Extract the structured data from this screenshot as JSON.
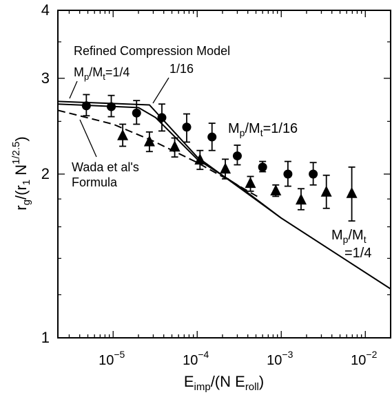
{
  "chart_data": {
    "type": "scatter",
    "x_scale": "log",
    "y_scale": "log",
    "xlim": [
      2.2e-06,
      0.02
    ],
    "ylim": [
      1,
      4
    ],
    "xlabel": {
      "base": "E",
      "sub": "imp",
      "mid": "/(N E",
      "sub2": "roll",
      "end": ")"
    },
    "ylabel": {
      "base": "r",
      "sub": "g",
      "mid": "/(r",
      "sub2": "1",
      "mid2": " N",
      "sup": "1/2.5",
      "end": ")"
    },
    "x_ticks": [
      {
        "value": 1e-05,
        "base": "10",
        "exp": "−5"
      },
      {
        "value": 0.0001,
        "base": "10",
        "exp": "−4"
      },
      {
        "value": 0.001,
        "base": "10",
        "exp": "−3"
      },
      {
        "value": 0.01,
        "base": "10",
        "exp": "−2"
      }
    ],
    "y_ticks": [
      {
        "value": 1,
        "label": "1"
      },
      {
        "value": 2,
        "label": "2"
      },
      {
        "value": 3,
        "label": "3"
      },
      {
        "value": 4,
        "label": "4"
      }
    ],
    "series": [
      {
        "marker": "circle",
        "points": [
          {
            "x": 4.8e-06,
            "y": 2.67,
            "lo": 2.56,
            "hi": 2.8
          },
          {
            "x": 9.5e-06,
            "y": 2.66,
            "lo": 2.55,
            "hi": 2.79
          },
          {
            "x": 1.9e-05,
            "y": 2.59,
            "lo": 2.47,
            "hi": 2.73
          },
          {
            "x": 3.8e-05,
            "y": 2.54,
            "lo": 2.4,
            "hi": 2.69
          },
          {
            "x": 7.5e-05,
            "y": 2.44,
            "lo": 2.29,
            "hi": 2.58
          },
          {
            "x": 0.00015,
            "y": 2.34,
            "lo": 2.21,
            "hi": 2.48
          },
          {
            "x": 0.0003,
            "y": 2.16,
            "lo": 2.08,
            "hi": 2.26
          },
          {
            "x": 0.0006,
            "y": 2.06,
            "lo": 2.02,
            "hi": 2.11
          },
          {
            "x": 0.0012,
            "y": 2.0,
            "lo": 1.9,
            "hi": 2.11
          },
          {
            "x": 0.0024,
            "y": 2.0,
            "lo": 1.91,
            "hi": 2.1
          }
        ]
      },
      {
        "marker": "triangle",
        "points": [
          {
            "x": 1.3e-05,
            "y": 2.35,
            "lo": 2.25,
            "hi": 2.47
          },
          {
            "x": 2.7e-05,
            "y": 2.29,
            "lo": 2.2,
            "hi": 2.39
          },
          {
            "x": 5.4e-05,
            "y": 2.24,
            "lo": 2.15,
            "hi": 2.33
          },
          {
            "x": 0.000108,
            "y": 2.12,
            "lo": 2.04,
            "hi": 2.21
          },
          {
            "x": 0.000216,
            "y": 2.04,
            "lo": 1.96,
            "hi": 2.13
          },
          {
            "x": 0.00043,
            "y": 1.92,
            "lo": 1.86,
            "hi": 1.98
          },
          {
            "x": 0.00086,
            "y": 1.86,
            "lo": 1.82,
            "hi": 1.91
          },
          {
            "x": 0.00172,
            "y": 1.79,
            "lo": 1.72,
            "hi": 1.88
          },
          {
            "x": 0.00344,
            "y": 1.85,
            "lo": 1.73,
            "hi": 1.99
          },
          {
            "x": 0.0069,
            "y": 1.84,
            "lo": 1.64,
            "hi": 2.06
          }
        ]
      }
    ],
    "lines": [
      {
        "style": "solid",
        "points": [
          [
            2.2e-06,
            2.72
          ],
          [
            2.7e-05,
            2.68
          ],
          [
            0.0001,
            2.15
          ],
          [
            0.001,
            1.66
          ],
          [
            0.02,
            1.23
          ]
        ]
      },
      {
        "style": "solid",
        "points": [
          [
            2.2e-06,
            2.69
          ],
          [
            2e-05,
            2.65
          ],
          [
            3.2e-05,
            2.54
          ],
          [
            0.0001,
            2.13
          ],
          [
            0.0003,
            1.91
          ],
          [
            0.001,
            1.66
          ]
        ]
      },
      {
        "style": "dashed",
        "points": [
          [
            2.2e-06,
            2.62
          ],
          [
            1e-05,
            2.47
          ],
          [
            3e-05,
            2.3
          ],
          [
            0.0001,
            2.1
          ],
          [
            0.0003,
            1.91
          ],
          [
            0.00055,
            1.81
          ]
        ]
      }
    ],
    "annotations": {
      "refined": "Refined Compression Model",
      "m_quarter": {
        "a": "M",
        "as": "p",
        "b": "/M",
        "bs": "t",
        "c": "=1/4"
      },
      "one_sixteen": "1/16",
      "circles_label": {
        "a": "M",
        "as": "p",
        "b": "/M",
        "bs": "t",
        "c": "=1/16"
      },
      "wada_1": "Wada et al's",
      "wada_2": "Formula",
      "triangles_label": {
        "a": "M",
        "as": "p",
        "b": "/M",
        "bs": "t",
        "c": "=1/4"
      }
    }
  }
}
